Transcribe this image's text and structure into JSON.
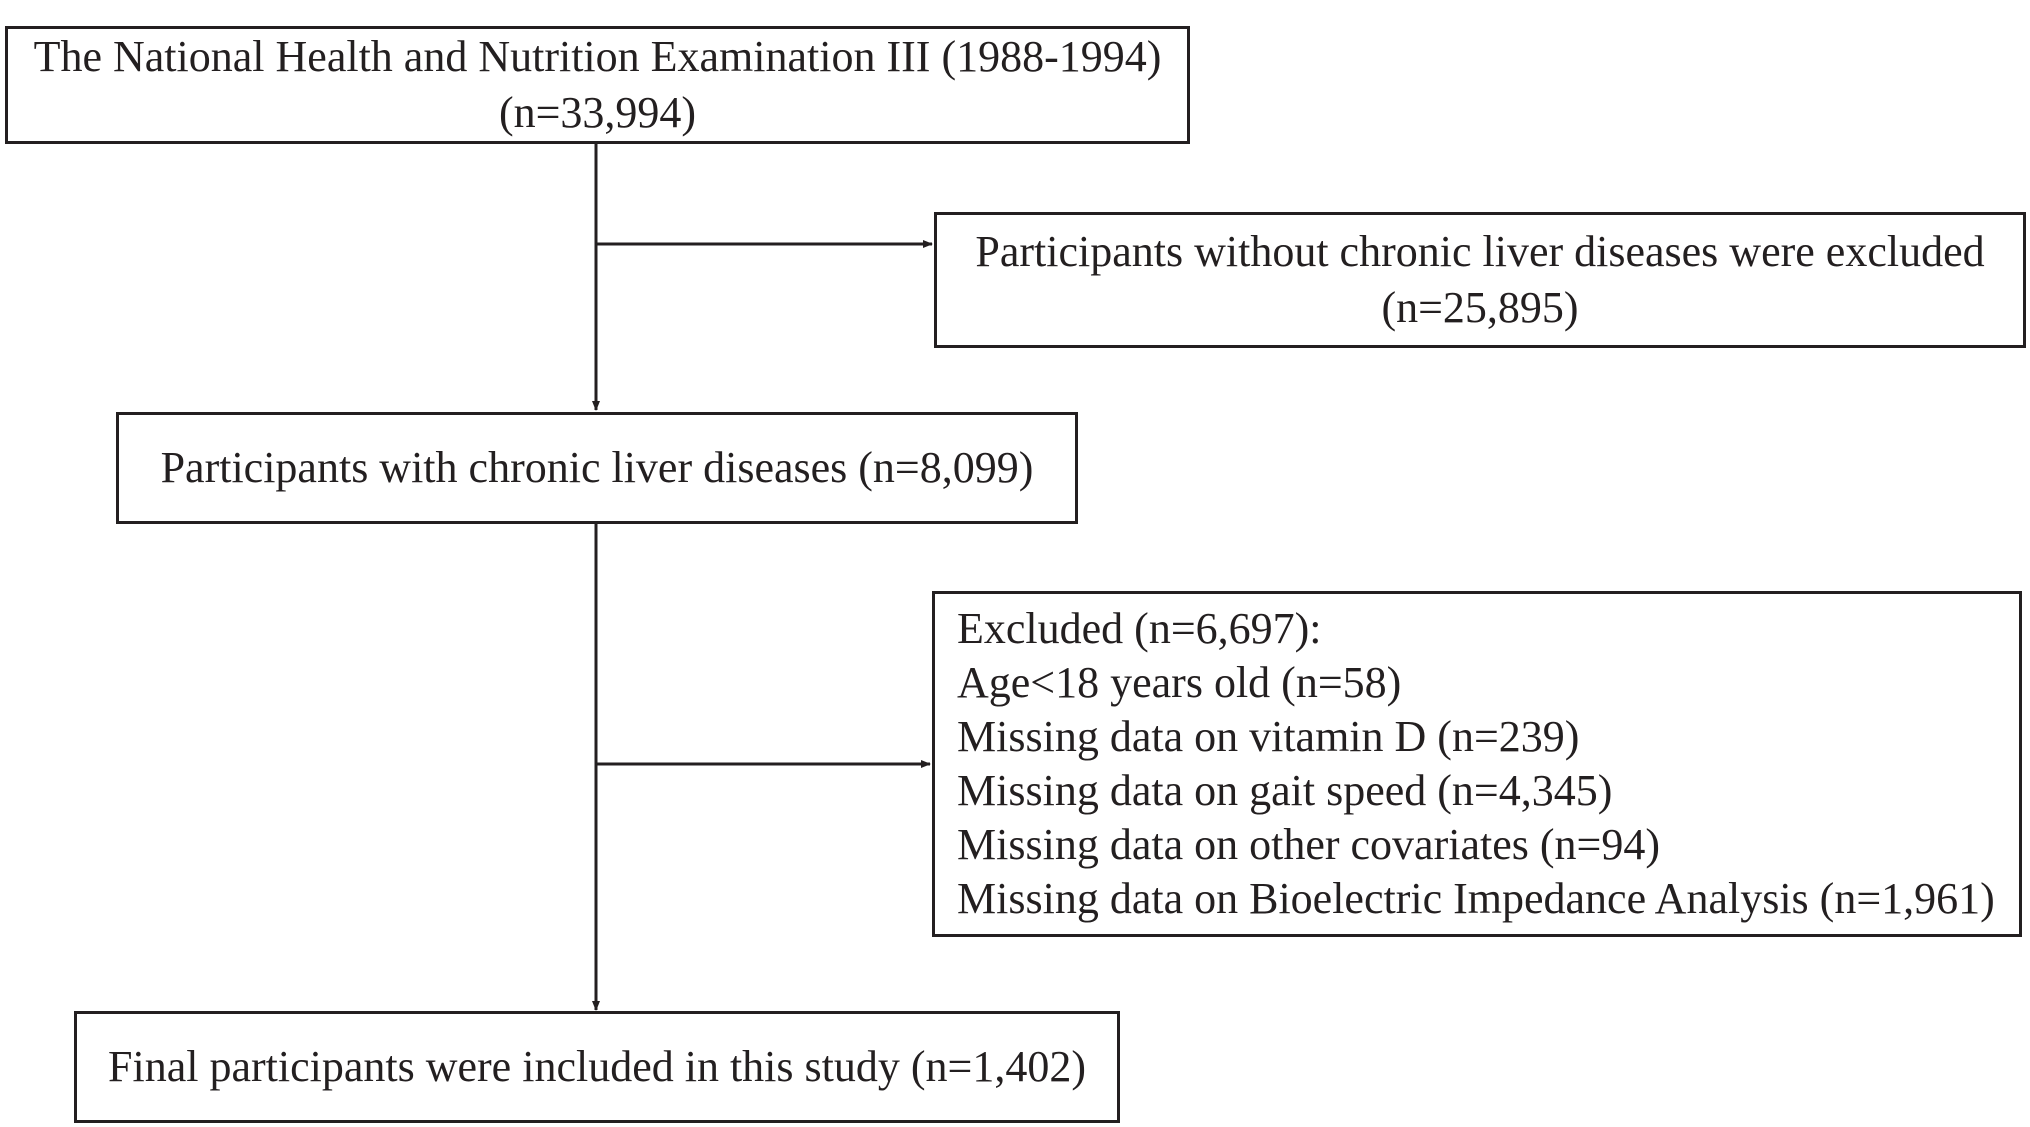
{
  "boxes": {
    "nhanes": {
      "line1": "The National Health and Nutrition Examination III (1988-1994)",
      "line2": "(n=33,994)"
    },
    "excluded1": {
      "line1": "Participants without chronic liver diseases were excluded",
      "line2": "(n=25,895)"
    },
    "chronic": {
      "line1": "Participants with chronic liver diseases (n=8,099)"
    },
    "excluded2": {
      "lines": [
        "Excluded (n=6,697):",
        "Age<18 years old (n=58)",
        "Missing data on vitamin D (n=239)",
        "Missing data on gait speed (n=4,345)",
        "Missing data on other covariates (n=94)",
        "Missing data on Bioelectric Impedance Analysis (n=1,961)"
      ]
    },
    "final": {
      "line1": "Final participants were included in this study (n=1,402)"
    }
  },
  "colors": {
    "stroke": "#231f20",
    "text": "#231f20",
    "background": "#ffffff"
  }
}
